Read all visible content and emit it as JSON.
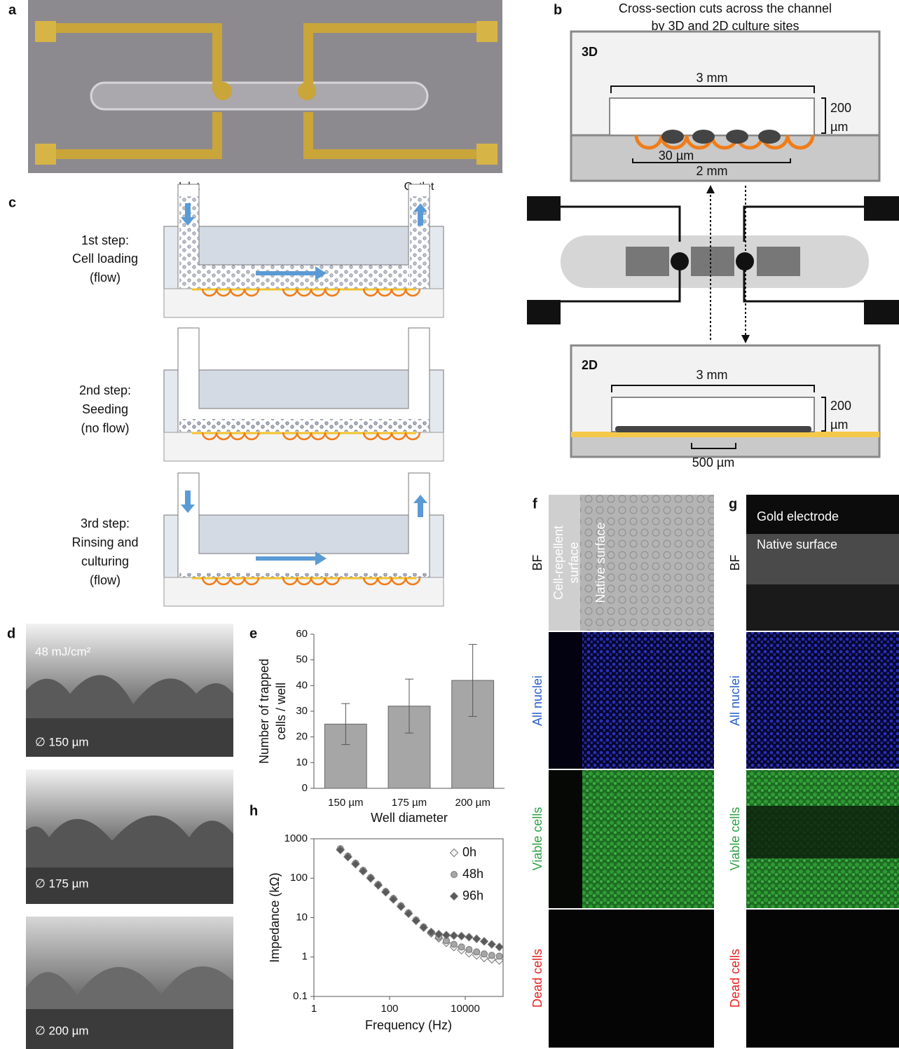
{
  "panel_labels": [
    "a",
    "b",
    "c",
    "d",
    "e",
    "f",
    "g",
    "h"
  ],
  "panel_b": {
    "title": [
      "Cross-section cuts across the channel",
      "by 3D and 2D culture sites"
    ],
    "section_3d": {
      "label": "3D",
      "channel_width": "3 mm",
      "channel_height": [
        "200",
        "µm"
      ],
      "well_size": "30 µm",
      "well_span": "2 mm"
    },
    "section_2d": {
      "label": "2D",
      "channel_width": "3 mm",
      "channel_height": [
        "200",
        "µm"
      ],
      "electrode_width": "500 µm"
    }
  },
  "panel_c": {
    "inlet": "Inlet",
    "outlet": "Outlet",
    "steps": [
      [
        "1st step:",
        "Cell loading",
        "(flow)"
      ],
      [
        "2nd step:",
        "Seeding",
        "(no flow)"
      ],
      [
        "3rd step:",
        "Rinsing and",
        "culturing",
        "(flow)"
      ]
    ]
  },
  "panel_d": {
    "dose": "48 mJ/cm²",
    "diameters": [
      "∅ 150 µm",
      "∅ 175 µm",
      "∅ 200 µm"
    ]
  },
  "panel_f": {
    "repellent": [
      "Cell-repellent",
      "surface"
    ],
    "native": "Native surface",
    "rows": [
      "BF",
      "All nuclei",
      "Viable cells",
      "Dead cells"
    ]
  },
  "panel_g": {
    "gold": "Gold electrode",
    "native": "Native surface",
    "rows": [
      "BF",
      "All nuclei",
      "Viable cells",
      "Dead cells"
    ]
  },
  "chart_data": [
    {
      "type": "bar",
      "categories": [
        "150 µm",
        "175 µm",
        "200 µm"
      ],
      "values": [
        25,
        32,
        42
      ],
      "errors": [
        8,
        10.5,
        14
      ],
      "color": "#a6a6a6",
      "ylim": [
        0,
        60
      ],
      "yticks": [
        0,
        10,
        20,
        30,
        40,
        50,
        60
      ],
      "y_label": [
        "Number of trapped",
        "cells / well"
      ],
      "x_label": "Well diameter"
    },
    {
      "type": "scatter",
      "xscale": "log",
      "yscale": "log",
      "legend": "upper right",
      "x": [
        5,
        7.9,
        12.6,
        20,
        31.6,
        50,
        79,
        126,
        200,
        316,
        500,
        794,
        1259,
        1995,
        3162,
        5012,
        7943,
        12589,
        19953,
        31623,
        50119,
        79433
      ],
      "series": [
        {
          "name": "0h",
          "color": "#f4f4f4",
          "marker": "diamond",
          "values": [
            540,
            355,
            234,
            155,
            102,
            68,
            45,
            30,
            19.5,
            12.9,
            8.5,
            5.6,
            4.0,
            3.0,
            2.3,
            1.8,
            1.5,
            1.25,
            1.1,
            0.95,
            0.88,
            0.82
          ]
        },
        {
          "name": "48h",
          "color": "#a6a6a6",
          "marker": "circle",
          "values": [
            560,
            365,
            240,
            158,
            104,
            69,
            46,
            30.5,
            20,
            13.2,
            8.7,
            5.8,
            4.2,
            3.2,
            2.6,
            2.1,
            1.8,
            1.55,
            1.35,
            1.2,
            1.1,
            1.05
          ]
        },
        {
          "name": "96h",
          "color": "#595959",
          "marker": "diamond",
          "values": [
            520,
            345,
            228,
            150,
            99,
            66,
            44,
            29,
            19,
            12.6,
            8.3,
            5.6,
            4.3,
            3.8,
            3.6,
            3.5,
            3.4,
            3.2,
            2.9,
            2.5,
            2.1,
            1.8
          ]
        }
      ],
      "xlim": [
        1,
        100000
      ],
      "ylim": [
        0.1,
        1000
      ],
      "xticks": [
        1,
        100,
        10000
      ],
      "yticks": [
        0.1,
        1,
        10,
        100,
        1000
      ],
      "x_label": "Frequency (Hz)",
      "y_label": "Impedance (kΩ)"
    }
  ]
}
